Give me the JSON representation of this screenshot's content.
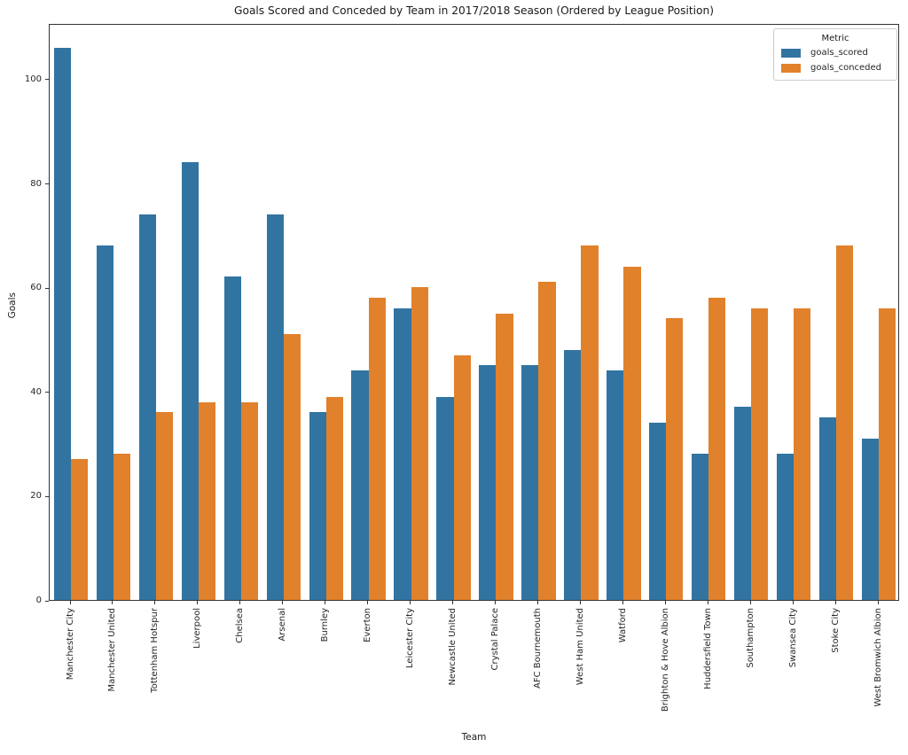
{
  "title": "Goals Scored and Conceded by Team in 2017/2018 Season (Ordered by League Position)",
  "chart_data": {
    "type": "bar",
    "title": "Goals Scored and Conceded by Team in 2017/2018 Season (Ordered by League Position)",
    "xlabel": "Team",
    "ylabel": "Goals",
    "legend_title": "Metric",
    "legend_position": "upper right",
    "grid": false,
    "ylim": [
      0,
      110.7
    ],
    "yticks": [
      0,
      20,
      40,
      60,
      80,
      100
    ],
    "categories": [
      "Manchester City",
      "Manchester United",
      "Tottenham Hotspur",
      "Liverpool",
      "Chelsea",
      "Arsenal",
      "Burnley",
      "Everton",
      "Leicester City",
      "Newcastle United",
      "Crystal Palace",
      "AFC Bournemouth",
      "West Ham United",
      "Watford",
      "Brighton & Hove Albion",
      "Huddersfield Town",
      "Southampton",
      "Swansea City",
      "Stoke City",
      "West Bromwich Albion"
    ],
    "series": [
      {
        "name": "goals_scored",
        "color": "#3274a1",
        "values": [
          106,
          68,
          74,
          84,
          62,
          74,
          36,
          44,
          56,
          39,
          45,
          45,
          48,
          44,
          34,
          28,
          37,
          28,
          35,
          31
        ]
      },
      {
        "name": "goals_conceded",
        "color": "#e1812c",
        "values": [
          27,
          28,
          36,
          38,
          38,
          51,
          39,
          58,
          60,
          47,
          55,
          61,
          68,
          64,
          54,
          58,
          56,
          56,
          68,
          56
        ]
      }
    ]
  }
}
